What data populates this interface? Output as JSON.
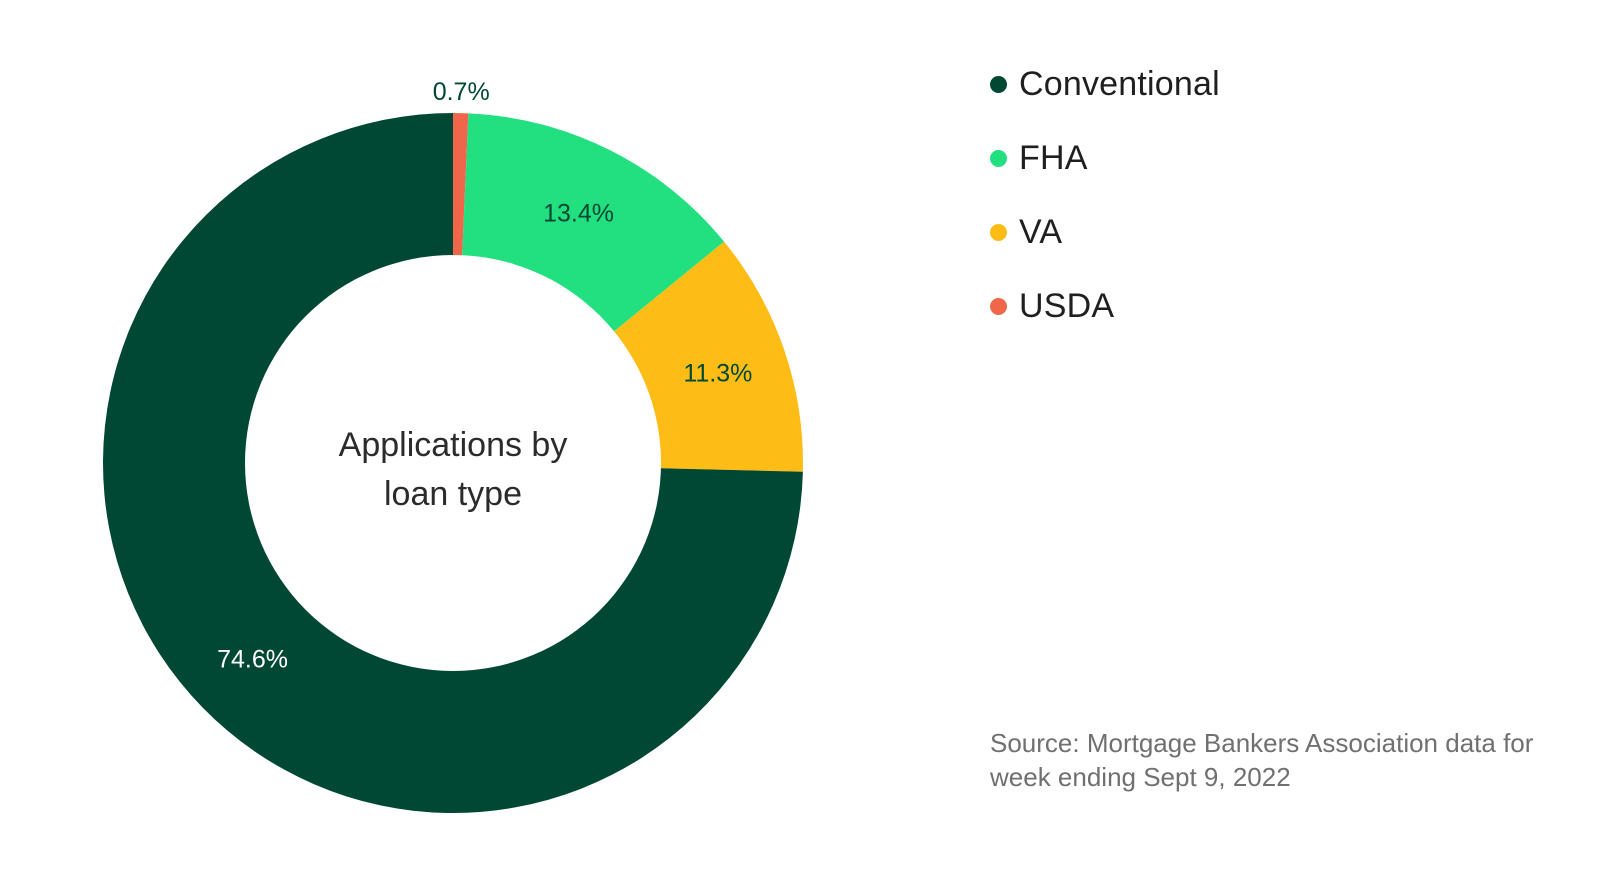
{
  "chart_data": {
    "type": "pie",
    "subtype": "donut",
    "title": "Applications by loan type",
    "title_lines": [
      "Applications by",
      "loan type"
    ],
    "categories": [
      "USDA",
      "FHA",
      "VA",
      "Conventional"
    ],
    "values": [
      0.7,
      13.4,
      11.3,
      74.6
    ],
    "labels": [
      "0.7%",
      "13.4%",
      "11.3%",
      "74.6%"
    ],
    "colors": [
      "#F0664A",
      "#22E07F",
      "#FDBD16",
      "#004833"
    ],
    "label_colors": [
      "#004833",
      "#004833",
      "#004833",
      "#ffffff"
    ],
    "legend_placement": "top-right",
    "legend": [
      {
        "label": "Conventional",
        "color": "#004833"
      },
      {
        "label": "FHA",
        "color": "#22E07F"
      },
      {
        "label": "VA",
        "color": "#FDBD16"
      },
      {
        "label": "USDA",
        "color": "#F0664A"
      }
    ],
    "source": "Source: Mortgage Bankers Association data for week ending Sept 9, 2022"
  }
}
